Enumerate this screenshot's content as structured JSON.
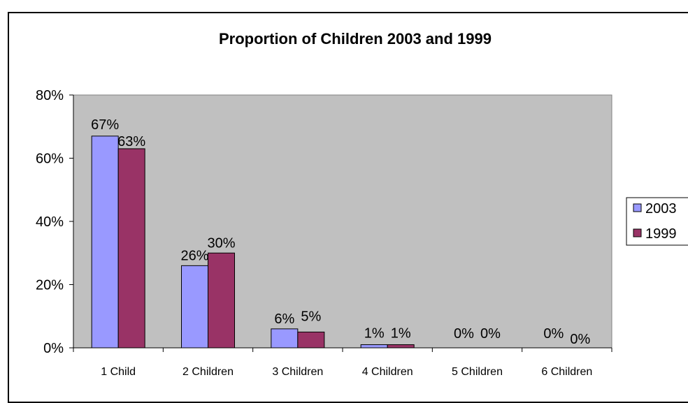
{
  "chart_data": {
    "type": "bar",
    "title": "Proportion of Children 2003 and 1999",
    "xlabel": "",
    "ylabel": "",
    "categories": [
      "1 Child",
      "2 Children",
      "3 Children",
      "4 Children",
      "5 Children",
      "6 Children"
    ],
    "series": [
      {
        "name": "2003",
        "values": [
          67,
          26,
          6,
          1,
          0,
          0
        ],
        "labels": [
          "67%",
          "26%",
          "6%",
          "1%",
          "0%",
          "0%"
        ],
        "color": "#9999ff"
      },
      {
        "name": "1999",
        "values": [
          63,
          30,
          5,
          1,
          0,
          0
        ],
        "labels": [
          "63%",
          "30%",
          "5%",
          "1%",
          "0%",
          "0%"
        ],
        "color": "#993366"
      }
    ],
    "ylim": [
      0,
      80
    ],
    "yticks": [
      "0%",
      "20%",
      "40%",
      "60%",
      "80%"
    ],
    "plot_background": "#c0c0c0",
    "grid": false,
    "legend_position": "right"
  }
}
